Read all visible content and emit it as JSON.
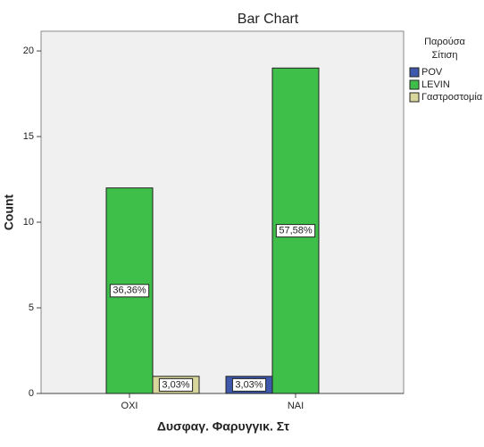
{
  "chart_data": {
    "type": "bar",
    "title": "Bar Chart",
    "x_label": "Δυσφαγ. Φαρυγγικ. Στ",
    "y_label": "Count",
    "categories": [
      "OXI",
      "NAI"
    ],
    "legend_title": [
      "Παρούσα",
      "Σίτιση"
    ],
    "series": [
      {
        "name": "POV",
        "color": "#3e58ac",
        "values": [
          0,
          1
        ],
        "value_labels": [
          null,
          "3,03%"
        ]
      },
      {
        "name": "LEVIN",
        "color": "#3ebf4a",
        "values": [
          12,
          19
        ],
        "value_labels": [
          "36,36%",
          "57,58%"
        ]
      },
      {
        "name": "Γαστροστομία",
        "color": "#d9d69b",
        "values": [
          1,
          0
        ],
        "value_labels": [
          "3,03%",
          null
        ]
      }
    ],
    "ylim": [
      0,
      21.15
    ],
    "yticks": [
      0,
      5,
      10,
      15,
      20
    ],
    "grid": false,
    "legend": "right"
  }
}
